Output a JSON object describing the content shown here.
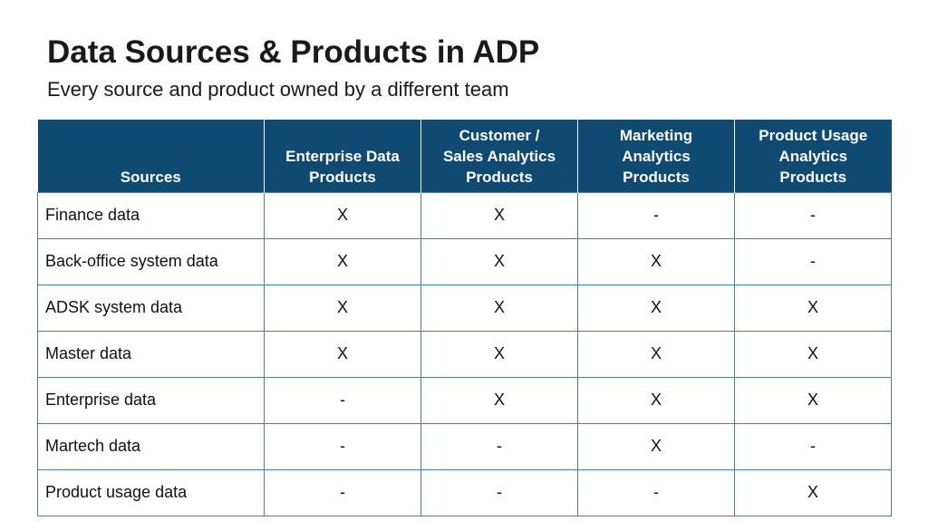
{
  "header": {
    "title": "Data Sources & Products in ADP",
    "subtitle": "Every source and product owned by a different team"
  },
  "table": {
    "columns": [
      "Sources",
      "Enterprise Data\nProducts",
      "Customer /\nSales Analytics\nProducts",
      "Marketing\nAnalytics\nProducts",
      "Product Usage\nAnalytics\nProducts"
    ],
    "rows": [
      [
        "Finance data",
        "X",
        "X",
        "-",
        "-"
      ],
      [
        "Back-office system data",
        "X",
        "X",
        "X",
        "-"
      ],
      [
        "ADSK system data",
        "X",
        "X",
        "X",
        "X"
      ],
      [
        "Master data",
        "X",
        "X",
        "X",
        "X"
      ],
      [
        "Enterprise data",
        "-",
        "X",
        "X",
        "X"
      ],
      [
        "Martech data",
        "-",
        "-",
        "X",
        "-"
      ],
      [
        "Product usage data",
        "-",
        "-",
        "-",
        "X"
      ]
    ]
  }
}
